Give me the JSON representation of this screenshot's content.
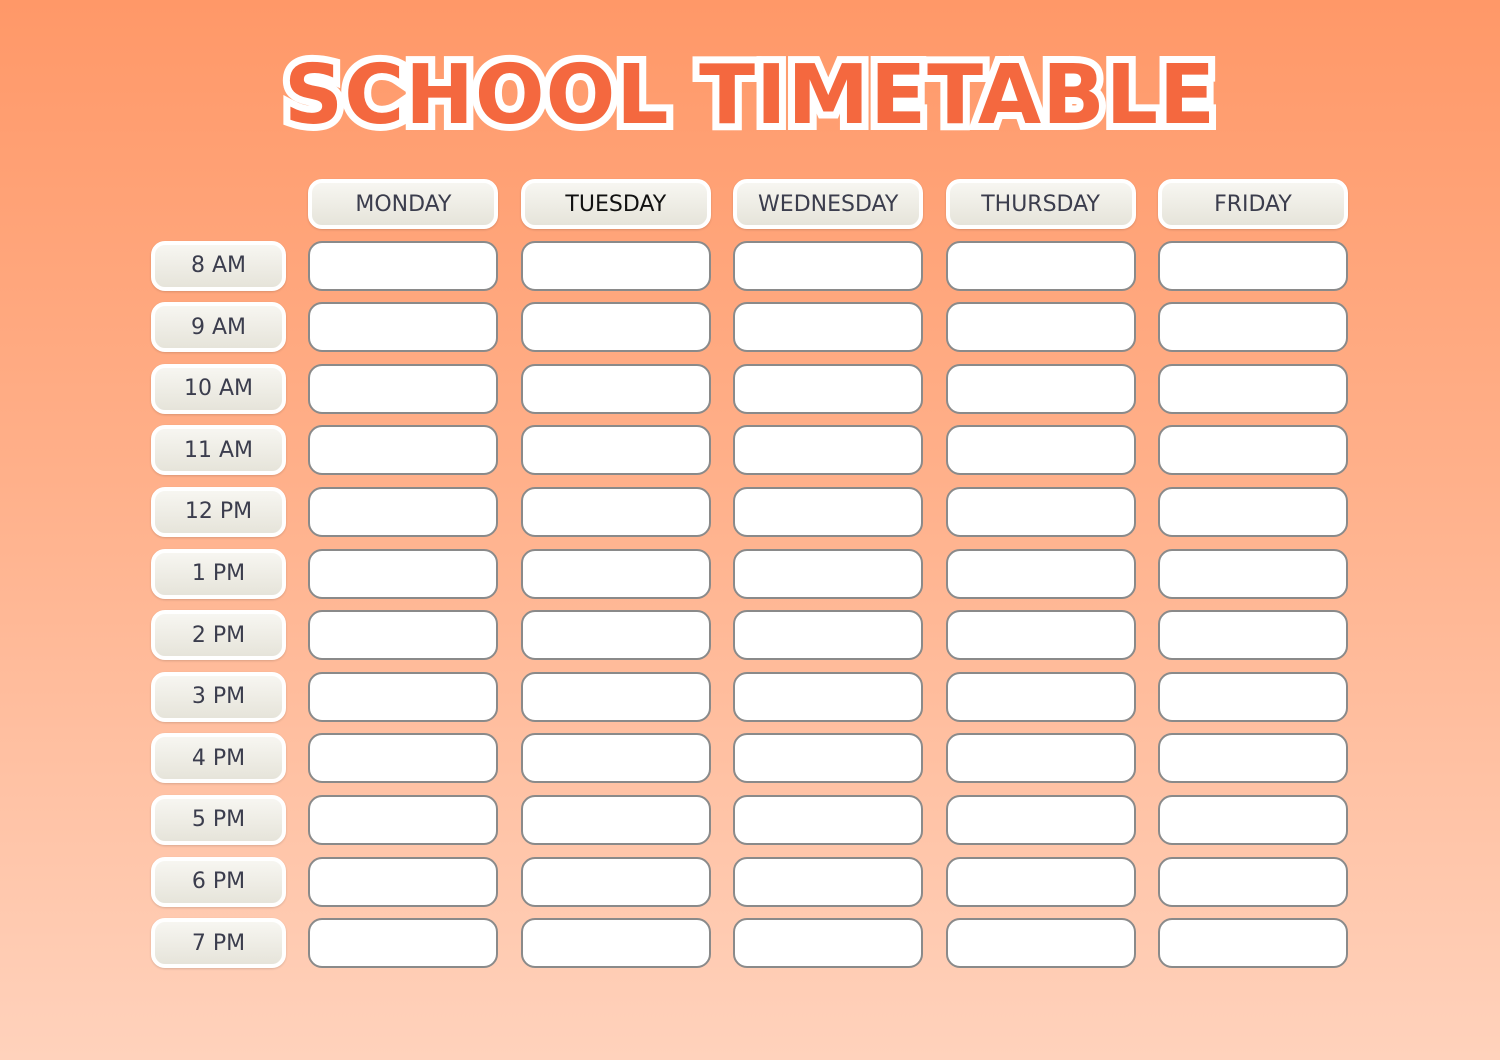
{
  "title": "SCHOOL TIMETABLE",
  "days": [
    "MONDAY",
    "TUESDAY",
    "WEDNESDAY",
    "THURSDAY",
    "FRIDAY"
  ],
  "times": [
    "8 AM",
    "9 AM",
    "10 AM",
    "11 AM",
    "12 PM",
    "1 PM",
    "2 PM",
    "3 PM",
    "4 PM",
    "5 PM",
    "6 PM",
    "7 PM"
  ],
  "cells": [],
  "colors": {
    "title": "#f4683f",
    "background_top": "#ff9868",
    "background_bottom": "#ffd2bc",
    "label_text": "#3b3d4d"
  }
}
